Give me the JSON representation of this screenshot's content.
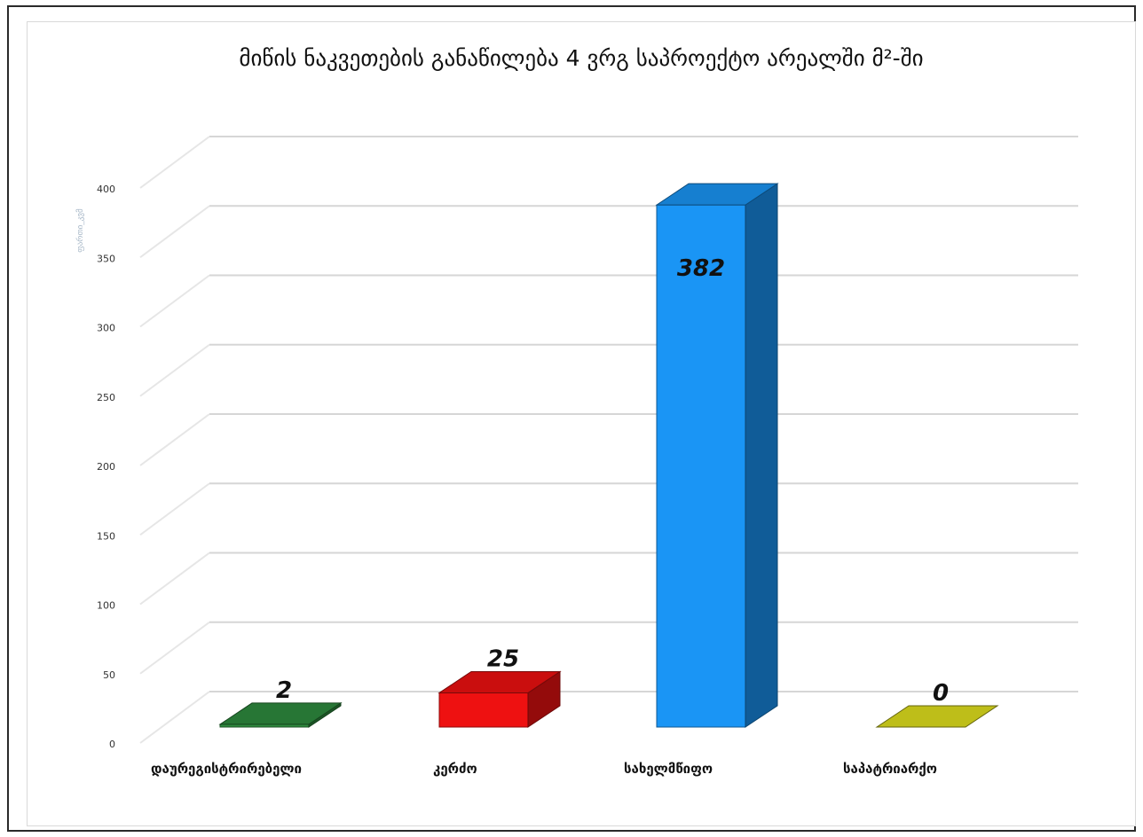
{
  "chart_data": {
    "type": "bar",
    "style": "3d",
    "title": "მიწის ნაკვეთების განაწილება 4 ვრგ საპროექტო არეალში მ²-ში",
    "ylabel": "ფართი_კვმ",
    "xlabel": "",
    "ylim": [
      0,
      400
    ],
    "ytick_labels": [
      "0",
      "50",
      "100",
      "150",
      "200",
      "250",
      "300",
      "350",
      "400"
    ],
    "grid": true,
    "legend": "none",
    "categories": [
      "დაურეგისტრირებელი",
      "კერძო",
      "სახელმწიფო",
      "საპატრიარქო"
    ],
    "series": [
      {
        "values": [
          2,
          25,
          382,
          0
        ],
        "data_labels": [
          "2",
          "25",
          "382",
          "0"
        ],
        "colors": [
          "#2e8b3e",
          "#ee1111",
          "#1a95f5",
          "#c8c81a"
        ]
      }
    ]
  }
}
